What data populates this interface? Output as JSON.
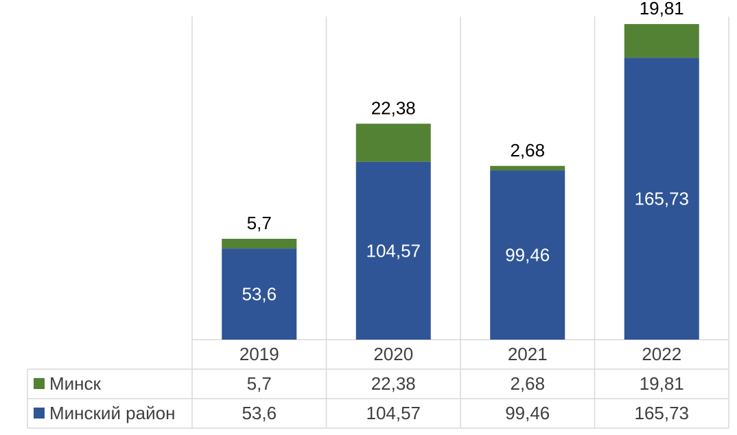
{
  "chart_data": {
    "type": "bar",
    "stacked": true,
    "categories": [
      "2019",
      "2020",
      "2021",
      "2022"
    ],
    "series": [
      {
        "name": "Минский район",
        "color": "#2F5597",
        "values": [
          53.6,
          104.57,
          99.46,
          165.73
        ],
        "labels": [
          "53,6",
          "104,57",
          "99,46",
          "165,73"
        ]
      },
      {
        "name": "Минск",
        "color": "#548235",
        "values": [
          5.7,
          22.38,
          2.68,
          19.81
        ],
        "labels": [
          "5,7",
          "22,38",
          "2,68",
          "19,81"
        ]
      }
    ],
    "ylim": [
      0,
      190
    ],
    "grid": false,
    "data_table": true,
    "title": "",
    "xlabel": "",
    "ylabel": ""
  },
  "colors": {
    "grid": "#D9D9D9",
    "text": "#404040",
    "label_top": "#000000",
    "label_inside": "#ffffff"
  }
}
